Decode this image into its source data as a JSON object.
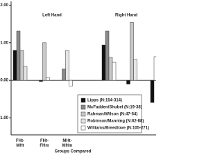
{
  "chart_data": {
    "type": "bar",
    "panels": [
      "Left Hand",
      "Right Hand"
    ],
    "categories": [
      "FHt-MHt",
      "FHt-FHm",
      "MHt-MHm",
      null,
      null,
      null
    ],
    "xlabel": "Groups Compared",
    "ylim": [
      -1.45,
      2.1
    ],
    "yticks": [
      {
        "value": -1,
        "label": "-1.00"
      },
      {
        "value": 0,
        "label": "0.00"
      },
      {
        "value": 1,
        "label": "1.00"
      },
      {
        "value": 2,
        "label": "2.00"
      }
    ],
    "series": [
      {
        "name": "Lipps (N:154-314)",
        "color": "#111111",
        "values": [
          0.8,
          -0.03,
          null,
          0.94,
          -0.1,
          -0.59
        ]
      },
      {
        "name": "McFadden/Shubel (N:19-38)",
        "color": "#8a8a8a",
        "values": [
          1.31,
          null,
          0.3,
          1.31,
          null,
          null
        ]
      },
      {
        "name": "Rahman/Wilson (N:47-54)",
        "color": "#c8c8c8",
        "values": [
          0.8,
          1.0,
          null,
          0.61,
          1.54,
          null
        ]
      },
      {
        "name": "Robinson/Manning (N:62-88)",
        "color": "#e6e6e6",
        "values": [
          0.37,
          null,
          0.8,
          null,
          0.56,
          null
        ]
      },
      {
        "name": "Williams/Breedlove (N:105-271)",
        "color": "#ffffff",
        "values": [
          null,
          0.07,
          -0.15,
          0.48,
          null,
          0.63
        ]
      }
    ]
  }
}
